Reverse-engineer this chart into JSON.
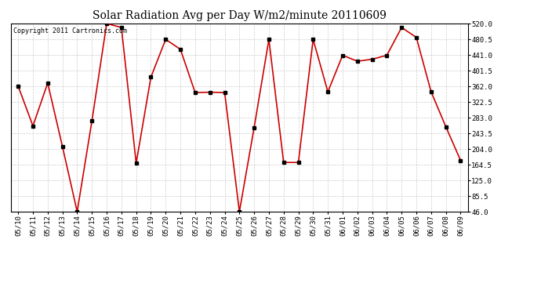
{
  "title": "Solar Radiation Avg per Day W/m2/minute 20110609",
  "copyright": "Copyright 2011 Cartronics.com",
  "x_labels": [
    "05/10",
    "05/11",
    "05/12",
    "05/13",
    "05/14",
    "05/15",
    "05/16",
    "05/17",
    "05/18",
    "05/19",
    "05/20",
    "05/21",
    "05/22",
    "05/23",
    "05/24",
    "05/25",
    "05/26",
    "05/27",
    "05/28",
    "05/29",
    "05/30",
    "05/31",
    "06/01",
    "06/02",
    "06/03",
    "06/04",
    "06/05",
    "06/06",
    "06/07",
    "06/08",
    "06/09"
  ],
  "y_values": [
    362,
    262,
    370,
    210,
    46,
    275,
    520,
    510,
    168,
    385,
    480,
    455,
    346,
    347,
    346,
    46,
    258,
    480,
    170,
    170,
    480,
    348,
    440,
    425,
    430,
    440,
    510,
    485,
    348,
    260,
    175
  ],
  "y_ticks": [
    46.0,
    85.5,
    125.0,
    164.5,
    204.0,
    243.5,
    283.0,
    322.5,
    362.0,
    401.5,
    441.0,
    480.5,
    520.0
  ],
  "y_min": 46.0,
  "y_max": 520.0,
  "line_color": "#cc0000",
  "marker_color": "#000000",
  "background_color": "#ffffff",
  "grid_color": "#cccccc",
  "title_fontsize": 10,
  "copyright_fontsize": 6,
  "tick_fontsize": 6.5,
  "ytick_fontsize": 6.5
}
